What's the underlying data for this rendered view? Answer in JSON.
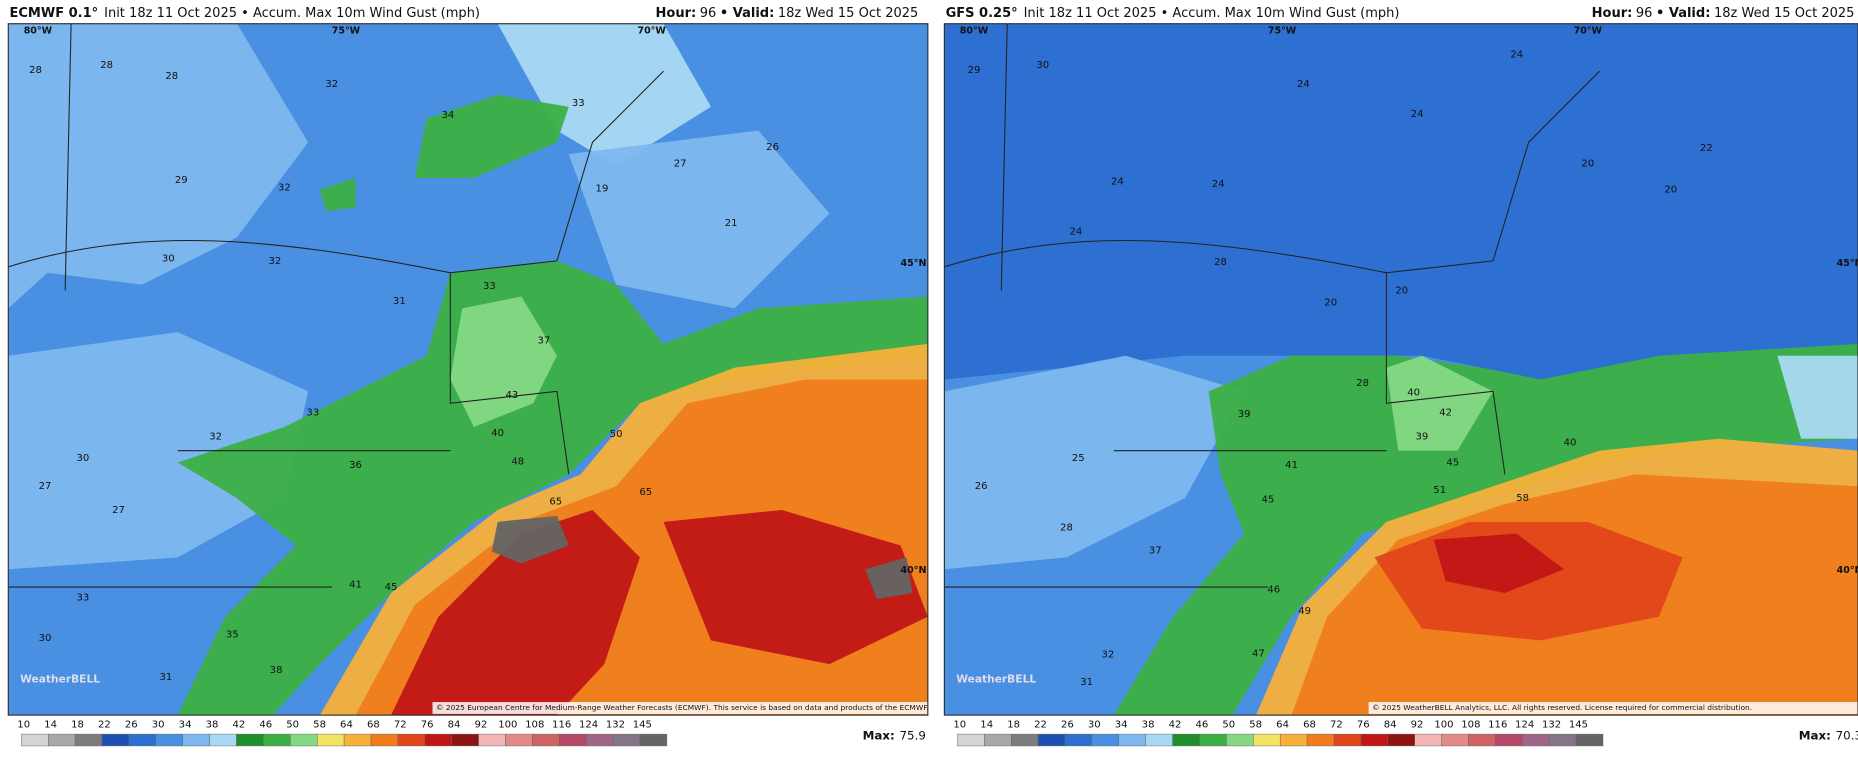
{
  "panels": [
    {
      "model": "ECMWF 0.1°",
      "subtitle": "Init 18z 11 Oct 2025 • Accum. Max 10m Wind Gust (mph)",
      "hour_label": "Hour:",
      "hour": 96,
      "valid_label": "• Valid:",
      "valid": "18z Wed 15 Oct 2025",
      "grid_labels": [
        "80°W",
        "75°W",
        "70°W",
        "45°N",
        "40°N"
      ],
      "labels": [
        28,
        28,
        28,
        32,
        34,
        33,
        19,
        27,
        21,
        26,
        29,
        32,
        30,
        32,
        31,
        33,
        37,
        43,
        40,
        48,
        65,
        65,
        50,
        33,
        36,
        32,
        30,
        27,
        27,
        33,
        35,
        38,
        31,
        30,
        41,
        45
      ],
      "copyright": "© 2025 European Centre for Medium-Range Weather Forecasts (ECMWF). This service is based on data and products of the ECMWF.",
      "watermark": "WeatherBELL",
      "max_label": "Max:",
      "max": 75.9
    },
    {
      "model": "GFS 0.25°",
      "subtitle": "Init 18z 11 Oct 2025 • Accum. Max 10m Wind Gust (mph)",
      "hour_label": "Hour:",
      "hour": 96,
      "valid_label": "• Valid:",
      "valid": "18z Wed 15 Oct 2025",
      "grid_labels": [
        "80°W",
        "75°W",
        "70°W",
        "45°N",
        "40°N"
      ],
      "labels": [
        29,
        30,
        24,
        24,
        24,
        20,
        20,
        22,
        24,
        24,
        24,
        28,
        20,
        20,
        28,
        40,
        42,
        39,
        45,
        51,
        58,
        40,
        39,
        41,
        45,
        25,
        26,
        28,
        37,
        46,
        49,
        47,
        32,
        31
      ],
      "copyright": "© 2025 WeatherBELL Analytics, LLC. All rights reserved. License required for commercial distribution.",
      "watermark": "WeatherBELL",
      "max_label": "Max:",
      "max": 70.3
    }
  ],
  "colorbar": {
    "ticks": [
      10,
      14,
      18,
      22,
      26,
      30,
      34,
      38,
      42,
      46,
      50,
      58,
      64,
      68,
      72,
      76,
      84,
      92,
      100,
      108,
      116,
      124,
      132,
      145
    ],
    "colors": [
      "#d4d4d4",
      "#a8a8a8",
      "#7c7c7c",
      "#1d4fb3",
      "#2c6fd1",
      "#4a90e2",
      "#7eb8ee",
      "#a9d9f2",
      "#1e8f2a",
      "#3cb043",
      "#84d884",
      "#f2e265",
      "#f6b13a",
      "#f07c1c",
      "#e0461a",
      "#c01616",
      "#8e1414",
      "#f4b6b6",
      "#e28a8a",
      "#d06464",
      "#b54868",
      "#a06488",
      "#857488",
      "#646464"
    ]
  }
}
